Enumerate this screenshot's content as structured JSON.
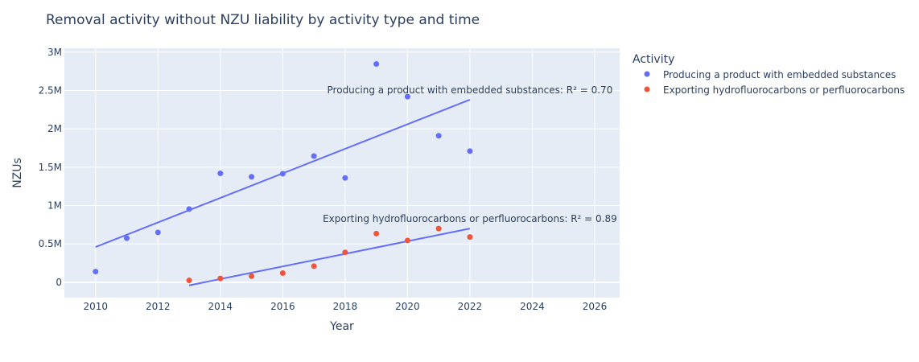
{
  "chart_data": {
    "type": "scatter",
    "title": "Removal activity without NZU liability by activity type and time",
    "xlabel": "Year",
    "ylabel": "NZUs",
    "xlim": [
      2009,
      2026.8
    ],
    "ylim": [
      -200000,
      3050000
    ],
    "xticks": [
      2010,
      2012,
      2014,
      2016,
      2018,
      2020,
      2022,
      2024,
      2026
    ],
    "xtick_labels": [
      "2010",
      "2012",
      "2014",
      "2016",
      "2018",
      "2020",
      "2022",
      "2024",
      "2026"
    ],
    "yticks": [
      0,
      500000,
      1000000,
      1500000,
      2000000,
      2500000,
      3000000
    ],
    "ytick_labels": [
      "0",
      "0.5M",
      "1M",
      "1.5M",
      "2M",
      "2.5M",
      "3M"
    ],
    "grid": true,
    "legend": {
      "title": "Activity",
      "position": "right"
    },
    "series": [
      {
        "name": "Producing a product with embedded substances",
        "color": "#636efa",
        "x": [
          2010,
          2011,
          2012,
          2013,
          2014,
          2015,
          2016,
          2017,
          2018,
          2019,
          2020,
          2021,
          2022
        ],
        "y": [
          140000,
          575000,
          650000,
          955000,
          1420000,
          1375000,
          1415000,
          1645000,
          1360000,
          2845000,
          2420000,
          1910000,
          1710000
        ],
        "trendline": {
          "x": [
            2010,
            2022
          ],
          "y": [
            460000,
            2380000
          ]
        },
        "annotation": "Producing a product with embedded substances: R² = 0.70"
      },
      {
        "name": "Exporting hydrofluorocarbons or perfluorocarbons",
        "color": "#ef553b",
        "x": [
          2013,
          2014,
          2015,
          2016,
          2017,
          2018,
          2019,
          2020,
          2021,
          2022
        ],
        "y": [
          25000,
          50000,
          80000,
          120000,
          210000,
          390000,
          635000,
          545000,
          700000,
          590000
        ],
        "trendline": {
          "x": [
            2013,
            2022
          ],
          "y": [
            -40000,
            700000
          ]
        },
        "annotation": "Exporting hydrofluorocarbons or perfluorocarbons: R² = 0.89"
      }
    ]
  }
}
